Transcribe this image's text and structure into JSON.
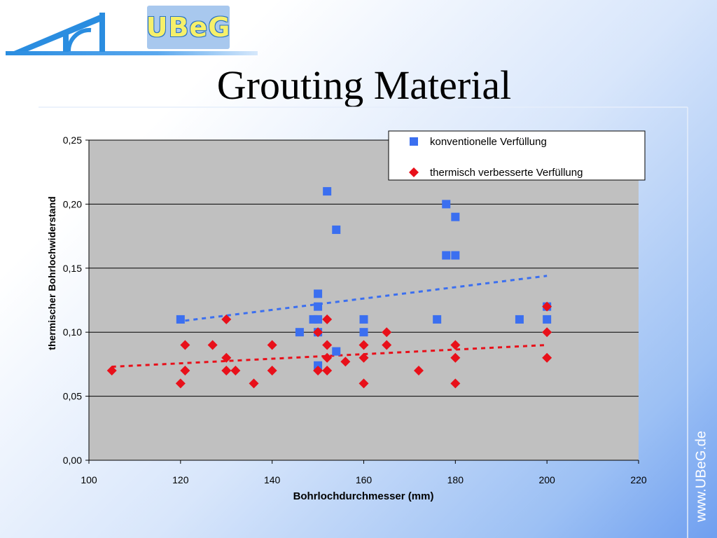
{
  "slide": {
    "title": "Grouting Material",
    "logo_text": "UBeG",
    "side_url": "www.UBeG.de"
  },
  "colors": {
    "series_conventional": "#3b6ff0",
    "series_thermal": "#e8101a",
    "plot_background": "#c0c0c0",
    "logo_blue": "#2a8de0"
  },
  "chart_data": {
    "type": "scatter",
    "title": "",
    "xlabel": "Bohrlochdurchmesser (mm)",
    "ylabel": "thermischer Bohrlochwiderstand",
    "xlim": [
      100,
      220
    ],
    "ylim": [
      0,
      0.25
    ],
    "x_ticks": [
      "100",
      "120",
      "140",
      "160",
      "180",
      "200",
      "220"
    ],
    "y_ticks": [
      "0,00",
      "0,05",
      "0,10",
      "0,15",
      "0,20",
      "0,25"
    ],
    "grid": "horizontal",
    "legend_placement": "top-right",
    "series": [
      {
        "name": "konventionelle Verfüllung",
        "marker": "square",
        "points": [
          [
            120,
            0.11
          ],
          [
            146,
            0.1
          ],
          [
            149,
            0.11
          ],
          [
            150,
            0.13
          ],
          [
            150,
            0.12
          ],
          [
            150,
            0.11
          ],
          [
            150,
            0.1
          ],
          [
            150,
            0.074
          ],
          [
            152,
            0.21
          ],
          [
            154,
            0.18
          ],
          [
            154,
            0.085
          ],
          [
            160,
            0.11
          ],
          [
            160,
            0.1
          ],
          [
            176,
            0.11
          ],
          [
            178,
            0.2
          ],
          [
            178,
            0.16
          ],
          [
            180,
            0.19
          ],
          [
            180,
            0.16
          ],
          [
            194,
            0.11
          ],
          [
            200,
            0.12
          ],
          [
            200,
            0.11
          ]
        ],
        "trend": [
          [
            121,
            0.109
          ],
          [
            200,
            0.144
          ]
        ]
      },
      {
        "name": "thermisch verbesserte Verfüllung",
        "marker": "diamond",
        "points": [
          [
            105,
            0.07
          ],
          [
            120,
            0.06
          ],
          [
            121,
            0.09
          ],
          [
            121,
            0.07
          ],
          [
            127,
            0.09
          ],
          [
            130,
            0.11
          ],
          [
            130,
            0.08
          ],
          [
            130,
            0.07
          ],
          [
            132,
            0.07
          ],
          [
            136,
            0.06
          ],
          [
            140,
            0.09
          ],
          [
            140,
            0.07
          ],
          [
            150,
            0.1
          ],
          [
            150,
            0.07
          ],
          [
            152,
            0.11
          ],
          [
            152,
            0.09
          ],
          [
            152,
            0.08
          ],
          [
            152,
            0.07
          ],
          [
            156,
            0.077
          ],
          [
            160,
            0.09
          ],
          [
            160,
            0.08
          ],
          [
            160,
            0.06
          ],
          [
            165,
            0.1
          ],
          [
            165,
            0.09
          ],
          [
            172,
            0.07
          ],
          [
            180,
            0.09
          ],
          [
            180,
            0.08
          ],
          [
            180,
            0.06
          ],
          [
            200,
            0.12
          ],
          [
            200,
            0.1
          ],
          [
            200,
            0.08
          ]
        ],
        "trend": [
          [
            105,
            0.073
          ],
          [
            200,
            0.09
          ]
        ]
      }
    ]
  }
}
